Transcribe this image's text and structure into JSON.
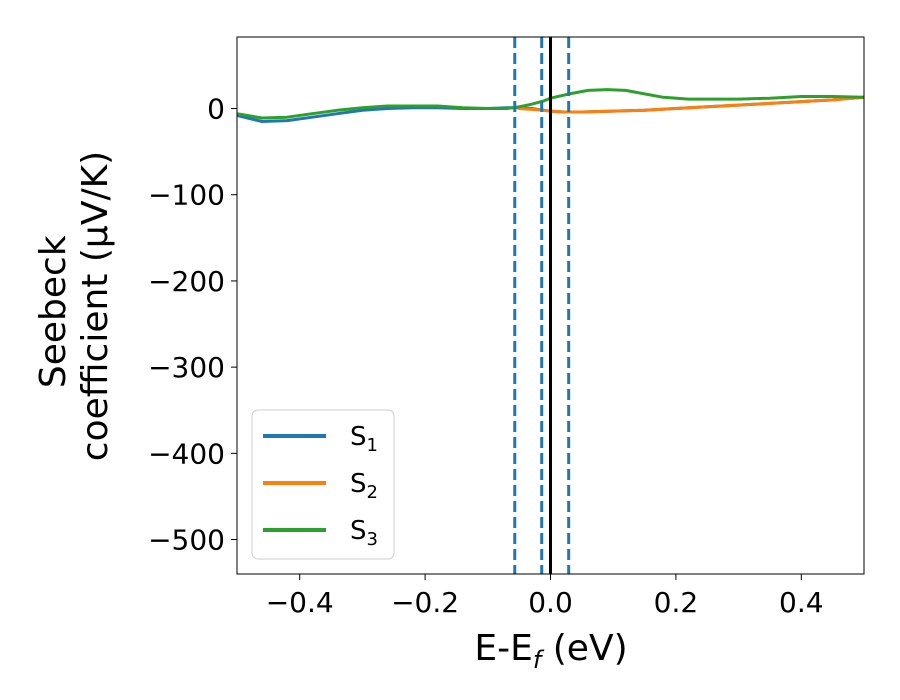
{
  "chart_data": {
    "type": "line",
    "xlabel": "E-E",
    "xlabel_sub": "f",
    "xlabel_unit": " (eV)",
    "ylabel_line1": "Seebeck",
    "ylabel_line2": "coefficient  (μV/K)",
    "xlim": [
      -0.5,
      0.5
    ],
    "ylim": [
      -540,
      83
    ],
    "xticks": [
      -0.4,
      -0.2,
      0.0,
      0.2,
      0.4
    ],
    "xtick_labels": [
      "−0.4",
      "−0.2",
      "0.0",
      "0.2",
      "0.4"
    ],
    "yticks": [
      0,
      -100,
      -200,
      -300,
      -400,
      -500
    ],
    "ytick_labels": [
      "0",
      "−100",
      "−200",
      "−300",
      "−400",
      "−500"
    ],
    "grid": false,
    "legend_position": "lower-left",
    "series": [
      {
        "name": "S",
        "sub": "1",
        "color": "#1f77b4",
        "x": [
          -0.5,
          -0.46,
          -0.42,
          -0.38,
          -0.34,
          -0.3,
          -0.26,
          -0.22,
          -0.18,
          -0.14,
          -0.1,
          -0.07,
          -0.05,
          -0.03,
          -0.01,
          0.0,
          0.02,
          0.05,
          0.1,
          0.15,
          0.2,
          0.25,
          0.3,
          0.35,
          0.4,
          0.45,
          0.5
        ],
        "y": [
          -8,
          -15,
          -14,
          -10,
          -6,
          -2,
          0,
          1,
          1,
          0,
          0,
          1,
          1,
          0,
          -2,
          -3,
          -4,
          -4,
          -3,
          -2,
          0,
          2,
          4,
          6,
          8,
          10,
          13
        ]
      },
      {
        "name": "S",
        "sub": "2",
        "color": "#ff7f0e",
        "x": [
          -0.05,
          -0.03,
          -0.01,
          0.0,
          0.02,
          0.05,
          0.1,
          0.15,
          0.2,
          0.25,
          0.3,
          0.35,
          0.4,
          0.45,
          0.5
        ],
        "y": [
          0,
          -1,
          -2,
          -3,
          -4,
          -4,
          -3,
          -2,
          0,
          2,
          4,
          6,
          8,
          10,
          13
        ]
      },
      {
        "name": "S",
        "sub": "3",
        "color": "#2ca02c",
        "x": [
          -0.5,
          -0.46,
          -0.42,
          -0.38,
          -0.34,
          -0.3,
          -0.26,
          -0.22,
          -0.18,
          -0.14,
          -0.1,
          -0.07,
          -0.05,
          -0.03,
          -0.01,
          0.0,
          0.03,
          0.06,
          0.09,
          0.12,
          0.15,
          0.18,
          0.22,
          0.26,
          0.3,
          0.35,
          0.4,
          0.45,
          0.5
        ],
        "y": [
          -6,
          -11,
          -10,
          -6,
          -2,
          1,
          3,
          3,
          3,
          1,
          0,
          0,
          2,
          5,
          9,
          12,
          17,
          21,
          22,
          21,
          17,
          13,
          11,
          11,
          11,
          12,
          14,
          14,
          13
        ]
      }
    ],
    "vlines": [
      {
        "x": -0.057,
        "style": "dashed",
        "color": "#1f77b4"
      },
      {
        "x": -0.014,
        "style": "dashed",
        "color": "#1f77b4"
      },
      {
        "x": 0.029,
        "style": "dashed",
        "color": "#1f77b4"
      },
      {
        "x": 0.0,
        "style": "solid",
        "color": "#000000"
      }
    ]
  }
}
